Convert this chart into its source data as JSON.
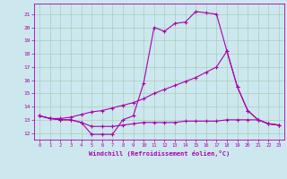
{
  "title": "",
  "xlabel": "Windchill (Refroidissement éolien,°C)",
  "background_color": "#cce8ee",
  "grid_color": "#aaccbb",
  "line_color": "#aa00aa",
  "xlim": [
    -0.5,
    23.5
  ],
  "ylim": [
    11.5,
    21.8
  ],
  "yticks": [
    12,
    13,
    14,
    15,
    16,
    17,
    18,
    19,
    20,
    21
  ],
  "xticks": [
    0,
    1,
    2,
    3,
    4,
    5,
    6,
    7,
    8,
    9,
    10,
    11,
    12,
    13,
    14,
    15,
    16,
    17,
    18,
    19,
    20,
    21,
    22,
    23
  ],
  "series1_x": [
    0,
    1,
    2,
    3,
    4,
    5,
    6,
    7,
    8,
    9,
    10,
    11,
    12,
    13,
    14,
    15,
    16,
    17,
    18,
    19,
    20,
    21,
    22,
    23
  ],
  "series1_y": [
    13.3,
    13.1,
    13.0,
    13.0,
    12.8,
    11.9,
    11.9,
    11.9,
    13.0,
    13.3,
    15.8,
    20.0,
    19.7,
    20.3,
    20.4,
    21.2,
    21.1,
    21.0,
    18.2,
    15.5,
    13.7,
    13.0,
    12.7,
    12.6
  ],
  "series2_x": [
    0,
    1,
    2,
    3,
    4,
    5,
    6,
    7,
    8,
    9,
    10,
    11,
    12,
    13,
    14,
    15,
    16,
    17,
    18,
    19,
    20,
    21,
    22,
    23
  ],
  "series2_y": [
    13.3,
    13.1,
    13.0,
    13.0,
    12.8,
    12.5,
    12.5,
    12.5,
    12.6,
    12.7,
    12.8,
    12.8,
    12.8,
    12.8,
    12.9,
    12.9,
    12.9,
    12.9,
    13.0,
    13.0,
    13.0,
    13.0,
    12.7,
    12.6
  ],
  "series3_x": [
    0,
    1,
    2,
    3,
    4,
    5,
    6,
    7,
    8,
    9,
    10,
    11,
    12,
    13,
    14,
    15,
    16,
    17,
    18,
    19,
    20,
    21,
    22,
    23
  ],
  "series3_y": [
    13.3,
    13.1,
    13.1,
    13.2,
    13.4,
    13.6,
    13.7,
    13.9,
    14.1,
    14.3,
    14.6,
    15.0,
    15.3,
    15.6,
    15.9,
    16.2,
    16.6,
    17.0,
    18.2,
    15.5,
    13.7,
    13.0,
    12.7,
    12.6
  ]
}
